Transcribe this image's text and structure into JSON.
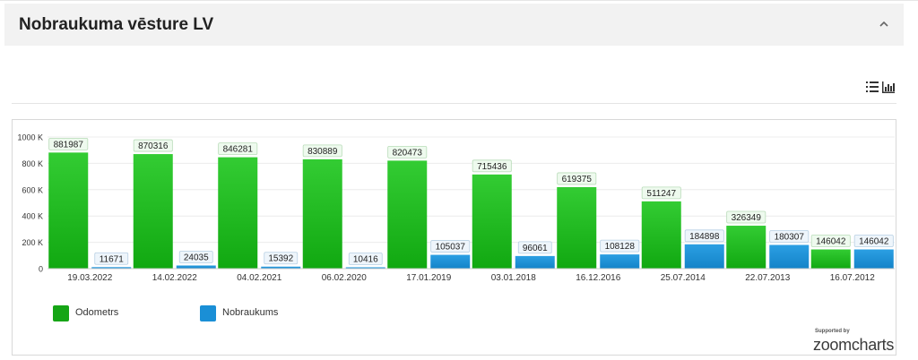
{
  "panel": {
    "title": "Nobraukuma vēsture LV"
  },
  "toolbar": {
    "list_icon": "list-icon",
    "chart_icon": "bar-chart-icon",
    "collapse_icon": "chevron-up-icon"
  },
  "chart_data": {
    "type": "bar",
    "categories": [
      "19.03.2022",
      "14.02.2022",
      "04.02.2021",
      "06.02.2020",
      "17.01.2019",
      "03.01.2018",
      "16.12.2016",
      "25.07.2014",
      "22.07.2013",
      "16.07.2012"
    ],
    "series": [
      {
        "name": "Odometrs",
        "color": "#1fb71f",
        "values": [
          881987,
          870316,
          846281,
          830889,
          820473,
          715436,
          619375,
          511247,
          326349,
          146042
        ]
      },
      {
        "name": "Nobraukums",
        "color": "#1a8fd6",
        "values": [
          11671,
          24035,
          15392,
          10416,
          105037,
          96061,
          108128,
          184898,
          180307,
          146042
        ]
      }
    ],
    "ylim": [
      0,
      1000000
    ],
    "yticks": [
      0,
      200000,
      400000,
      600000,
      800000,
      1000000
    ],
    "ytick_labels": [
      "0",
      "200 K",
      "400 K",
      "600 K",
      "800 K",
      "1000 K"
    ],
    "grid": true,
    "legend_position": "bottom-left"
  },
  "brand": {
    "supported_by": "Supported by",
    "name": "zoomcharts"
  }
}
